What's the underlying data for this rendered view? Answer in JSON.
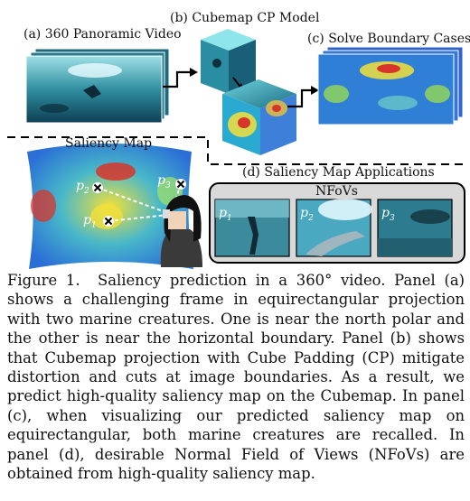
{
  "panels": {
    "a_label": "(a) 360 Panoramic Video",
    "b_label": "(b) Cubemap CP Model",
    "c_label": "(c) Solve Boundary Cases",
    "d_label": "(d) Saliency Map Applications",
    "saliency_map_label": "Saliency Map",
    "nfovs_label": "NFoVs"
  },
  "points": {
    "p1": "p",
    "p1_sub": "1",
    "p2": "p",
    "p2_sub": "2",
    "p3": "p",
    "p3_sub": "3"
  },
  "nfov_tiles": [
    {
      "var": "p",
      "sub": "1"
    },
    {
      "var": "p",
      "sub": "2"
    },
    {
      "var": "p",
      "sub": "3"
    }
  ],
  "caption": {
    "figure_label": "Figure 1.",
    "text": "Saliency prediction in a 360° video. Panel (a) shows a challenging frame in equirectangular projection with two marine creatures. One is near the north polar and the other is near the horizontal boundary. Panel (b) shows that Cubemap projection with Cube Padding (CP) mitigate distortion and cuts at image boundaries. As a result, we predict high-quality saliency map on the Cubemap. In panel (c), when visualizing our predicted saliency map on equirectangular, both marine creatures are recalled. In panel (d), desirable Normal Field of Views (NFoVs) are obtained from high-quality saliency map."
  },
  "colors": {
    "ocean": "#2f8fa0",
    "saliency_low": "#2a6fd6",
    "saliency_mid": "#f2e03a",
    "saliency_high": "#d8352a"
  }
}
